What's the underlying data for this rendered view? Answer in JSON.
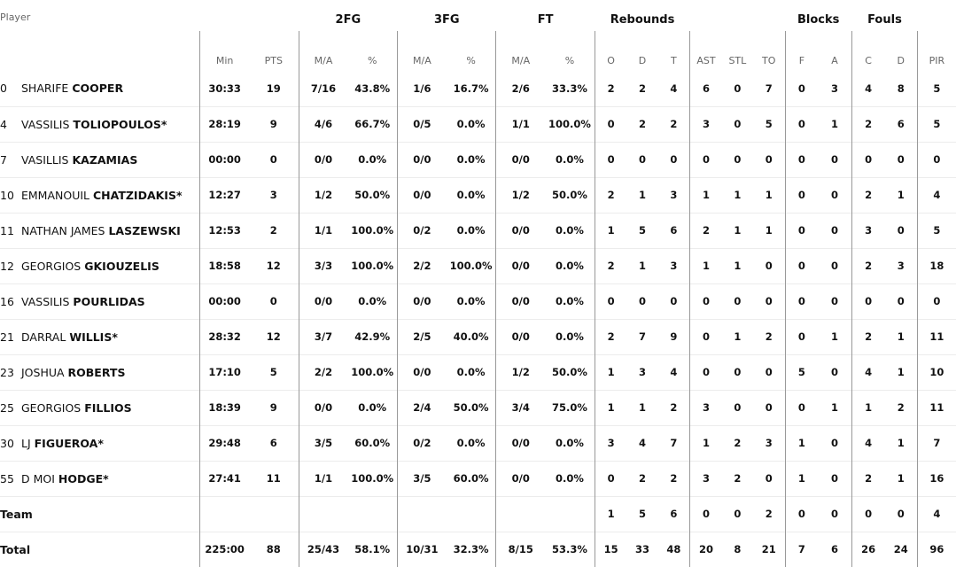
{
  "groups": {
    "fg2": "2FG",
    "fg3": "3FG",
    "ft": "FT",
    "reb": "Rebounds",
    "blk": "Blocks",
    "fouls": "Fouls"
  },
  "headers": {
    "player": "Player",
    "cols": [
      "Min",
      "PTS",
      "M/A",
      "%",
      "M/A",
      "%",
      "M/A",
      "%",
      "O",
      "D",
      "T",
      "AST",
      "STL",
      "TO",
      "F",
      "A",
      "C",
      "D",
      "PIR",
      "+/-"
    ]
  },
  "players": [
    {
      "num": "0",
      "first": "SHARIFE",
      "last": "COOPER",
      "stats": [
        "30:33",
        "19",
        "7/16",
        "43.8%",
        "1/6",
        "16.7%",
        "2/6",
        "33.3%",
        "2",
        "2",
        "4",
        "6",
        "0",
        "7",
        "0",
        "3",
        "4",
        "8",
        "5",
        ""
      ]
    },
    {
      "num": "4",
      "first": "VASSILIS",
      "last": "TOLIOPOULOS*",
      "stats": [
        "28:19",
        "9",
        "4/6",
        "66.7%",
        "0/5",
        "0.0%",
        "1/1",
        "100.0%",
        "0",
        "2",
        "2",
        "3",
        "0",
        "5",
        "0",
        "1",
        "2",
        "6",
        "5",
        ""
      ]
    },
    {
      "num": "7",
      "first": "VASILLIS",
      "last": "KAZAMIAS",
      "stats": [
        "00:00",
        "0",
        "0/0",
        "0.0%",
        "0/0",
        "0.0%",
        "0/0",
        "0.0%",
        "0",
        "0",
        "0",
        "0",
        "0",
        "0",
        "0",
        "0",
        "0",
        "0",
        "0",
        ""
      ]
    },
    {
      "num": "10",
      "first": "EMMANOUIL",
      "last": "CHATZIDAKIS*",
      "stats": [
        "12:27",
        "3",
        "1/2",
        "50.0%",
        "0/0",
        "0.0%",
        "1/2",
        "50.0%",
        "2",
        "1",
        "3",
        "1",
        "1",
        "1",
        "0",
        "0",
        "2",
        "1",
        "4",
        ""
      ]
    },
    {
      "num": "11",
      "first": "NATHAN JAMES",
      "last": "LASZEWSKI",
      "stats": [
        "12:53",
        "2",
        "1/1",
        "100.0%",
        "0/2",
        "0.0%",
        "0/0",
        "0.0%",
        "1",
        "5",
        "6",
        "2",
        "1",
        "1",
        "0",
        "0",
        "3",
        "0",
        "5",
        ""
      ]
    },
    {
      "num": "12",
      "first": "GEORGIOS",
      "last": "GKIOUZELIS",
      "stats": [
        "18:58",
        "12",
        "3/3",
        "100.0%",
        "2/2",
        "100.0%",
        "0/0",
        "0.0%",
        "2",
        "1",
        "3",
        "1",
        "1",
        "0",
        "0",
        "0",
        "2",
        "3",
        "18",
        ""
      ]
    },
    {
      "num": "16",
      "first": "VASSILIS",
      "last": "POURLIDAS",
      "stats": [
        "00:00",
        "0",
        "0/0",
        "0.0%",
        "0/0",
        "0.0%",
        "0/0",
        "0.0%",
        "0",
        "0",
        "0",
        "0",
        "0",
        "0",
        "0",
        "0",
        "0",
        "0",
        "0",
        ""
      ]
    },
    {
      "num": "21",
      "first": "DARRAL",
      "last": "WILLIS*",
      "stats": [
        "28:32",
        "12",
        "3/7",
        "42.9%",
        "2/5",
        "40.0%",
        "0/0",
        "0.0%",
        "2",
        "7",
        "9",
        "0",
        "1",
        "2",
        "0",
        "1",
        "2",
        "1",
        "11",
        ""
      ]
    },
    {
      "num": "23",
      "first": "JOSHUA",
      "last": "ROBERTS",
      "stats": [
        "17:10",
        "5",
        "2/2",
        "100.0%",
        "0/0",
        "0.0%",
        "1/2",
        "50.0%",
        "1",
        "3",
        "4",
        "0",
        "0",
        "0",
        "5",
        "0",
        "4",
        "1",
        "10",
        ""
      ]
    },
    {
      "num": "25",
      "first": "GEORGIOS",
      "last": "FILLIOS",
      "stats": [
        "18:39",
        "9",
        "0/0",
        "0.0%",
        "2/4",
        "50.0%",
        "3/4",
        "75.0%",
        "1",
        "1",
        "2",
        "3",
        "0",
        "0",
        "0",
        "1",
        "1",
        "2",
        "11",
        ""
      ]
    },
    {
      "num": "30",
      "first": "LJ",
      "last": "FIGUEROA*",
      "stats": [
        "29:48",
        "6",
        "3/5",
        "60.0%",
        "0/2",
        "0.0%",
        "0/0",
        "0.0%",
        "3",
        "4",
        "7",
        "1",
        "2",
        "3",
        "1",
        "0",
        "4",
        "1",
        "7",
        ""
      ]
    },
    {
      "num": "55",
      "first": "D MOI",
      "last": "HODGE*",
      "stats": [
        "27:41",
        "11",
        "1/1",
        "100.0%",
        "3/5",
        "60.0%",
        "0/0",
        "0.0%",
        "0",
        "2",
        "2",
        "3",
        "2",
        "0",
        "1",
        "0",
        "2",
        "1",
        "16",
        ""
      ]
    }
  ],
  "team": {
    "label": "Team",
    "stats": [
      "",
      "",
      "",
      "",
      "",
      "",
      "",
      "",
      "1",
      "5",
      "6",
      "0",
      "0",
      "2",
      "0",
      "0",
      "0",
      "0",
      "4",
      ""
    ]
  },
  "total": {
    "label": "Total",
    "stats": [
      "225:00",
      "88",
      "25/43",
      "58.1%",
      "10/31",
      "32.3%",
      "8/15",
      "53.3%",
      "15",
      "33",
      "48",
      "20",
      "8",
      "21",
      "7",
      "6",
      "26",
      "24",
      "96",
      ""
    ]
  }
}
